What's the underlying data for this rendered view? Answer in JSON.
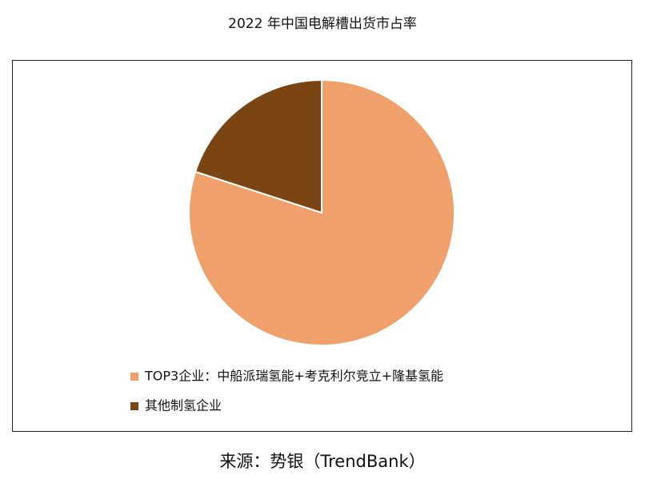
{
  "chart_data": {
    "type": "pie",
    "title": "2022 年中国电解槽出货市占率",
    "categories": [
      "TOP3企业：中船派瑞氢能+考克利尔竞立+隆基氢能",
      "其他制氢企业"
    ],
    "values": [
      80,
      20
    ],
    "colors": [
      "#f0a06a",
      "#7b4513"
    ],
    "source": "来源：势银（TrendBank）"
  }
}
